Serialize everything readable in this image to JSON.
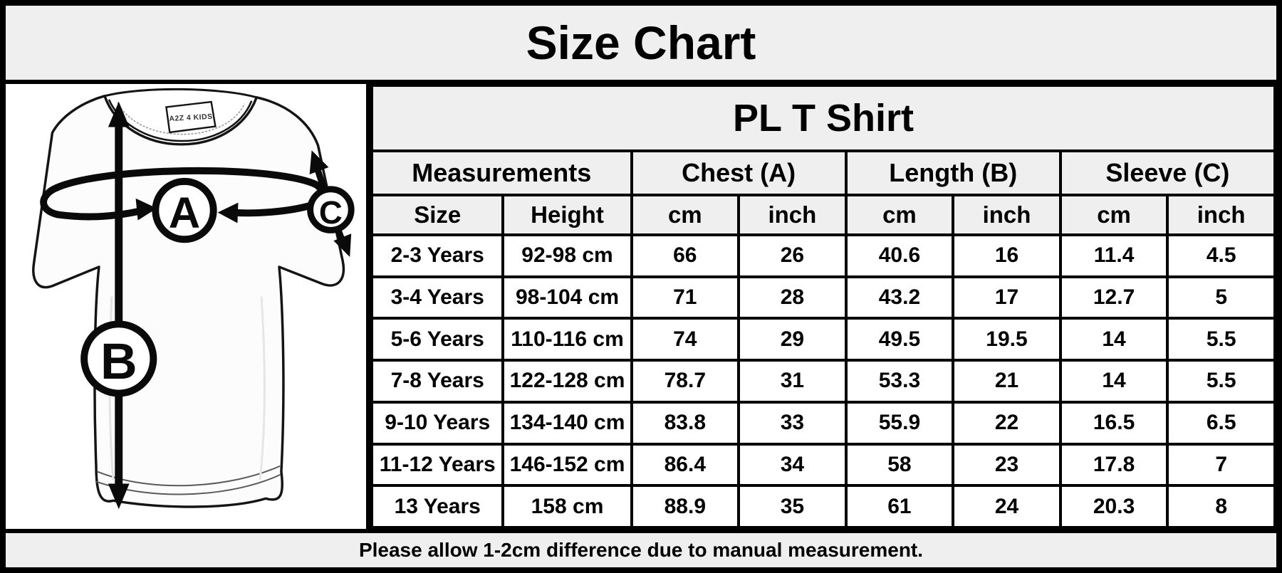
{
  "page": {
    "title": "Size Chart"
  },
  "diagram": {
    "brand_tag": "A2Z 4 KIDS",
    "labels": {
      "chest": "A",
      "length": "B",
      "sleeve": "C"
    }
  },
  "table": {
    "product_title": "PL T Shirt",
    "groups": [
      {
        "label": "Measurements"
      },
      {
        "label": "Chest (A)"
      },
      {
        "label": "Length (B)"
      },
      {
        "label": "Sleeve (C)"
      }
    ],
    "columns": [
      "Size",
      "Height",
      "cm",
      "inch",
      "cm",
      "inch",
      "cm",
      "inch"
    ],
    "rows": [
      [
        "2-3 Years",
        "92-98 cm",
        "66",
        "26",
        "40.6",
        "16",
        "11.4",
        "4.5"
      ],
      [
        "3-4 Years",
        "98-104 cm",
        "71",
        "28",
        "43.2",
        "17",
        "12.7",
        "5"
      ],
      [
        "5-6 Years",
        "110-116 cm",
        "74",
        "29",
        "49.5",
        "19.5",
        "14",
        "5.5"
      ],
      [
        "7-8 Years",
        "122-128 cm",
        "78.7",
        "31",
        "53.3",
        "21",
        "14",
        "5.5"
      ],
      [
        "9-10 Years",
        "134-140 cm",
        "83.8",
        "33",
        "55.9",
        "22",
        "16.5",
        "6.5"
      ],
      [
        "11-12 Years",
        "146-152 cm",
        "86.4",
        "34",
        "58",
        "23",
        "17.8",
        "7"
      ],
      [
        "13 Years",
        "158 cm",
        "88.9",
        "35",
        "61",
        "24",
        "20.3",
        "8"
      ]
    ]
  },
  "footer": {
    "note": "Please allow 1-2cm difference due to manual measurement."
  },
  "colors": {
    "band_bg": "#efefef",
    "cell_bg": "#ffffff",
    "border": "#000000",
    "ink": "#000000"
  },
  "chart_data": {
    "type": "table",
    "title": "PL T Shirt",
    "column_groups": [
      "Measurements",
      "Chest (A)",
      "Length (B)",
      "Sleeve (C)"
    ],
    "columns": [
      "Size",
      "Height",
      "Chest cm",
      "Chest inch",
      "Length cm",
      "Length inch",
      "Sleeve cm",
      "Sleeve inch"
    ],
    "rows": [
      [
        "2-3 Years",
        "92-98 cm",
        66,
        26,
        40.6,
        16,
        11.4,
        4.5
      ],
      [
        "3-4 Years",
        "98-104 cm",
        71,
        28,
        43.2,
        17,
        12.7,
        5
      ],
      [
        "5-6 Years",
        "110-116 cm",
        74,
        29,
        49.5,
        19.5,
        14,
        5.5
      ],
      [
        "7-8 Years",
        "122-128 cm",
        78.7,
        31,
        53.3,
        21,
        14,
        5.5
      ],
      [
        "9-10 Years",
        "134-140 cm",
        83.8,
        33,
        55.9,
        22,
        16.5,
        6.5
      ],
      [
        "11-12 Years",
        "146-152 cm",
        86.4,
        34,
        58,
        23,
        17.8,
        7
      ],
      [
        "13 Years",
        "158 cm",
        88.9,
        35,
        61,
        24,
        20.3,
        8
      ]
    ],
    "note": "Please allow 1-2cm difference due to manual measurement."
  }
}
